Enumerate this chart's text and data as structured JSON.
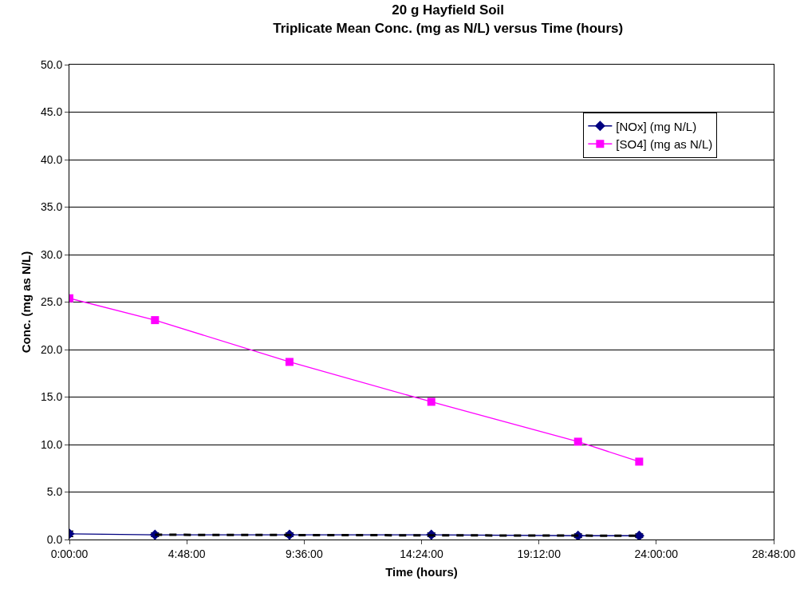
{
  "chart_data": {
    "type": "line",
    "title": "20 g Hayfield Soil\nTriplicate Mean Conc. (mg as N/L) versus Time (hours)",
    "xlabel": "Time (hours)",
    "ylabel": "Conc. (mg as N/L)",
    "xlim": [
      0,
      28.8
    ],
    "xticks": [
      {
        "value": 0,
        "label": "0:00:00"
      },
      {
        "value": 4.8,
        "label": "4:48:00"
      },
      {
        "value": 9.6,
        "label": "9:36:00"
      },
      {
        "value": 14.4,
        "label": "14:24:00"
      },
      {
        "value": 19.2,
        "label": "19:12:00"
      },
      {
        "value": 24,
        "label": "24:00:00"
      },
      {
        "value": 28.8,
        "label": "28:48:00"
      }
    ],
    "ylim": [
      0,
      50
    ],
    "yticks": [
      {
        "value": 0,
        "label": "0.0"
      },
      {
        "value": 5,
        "label": "5.0"
      },
      {
        "value": 10,
        "label": "10.0"
      },
      {
        "value": 15,
        "label": "15.0"
      },
      {
        "value": 20,
        "label": "20.0"
      },
      {
        "value": 25,
        "label": "25.0"
      },
      {
        "value": 30,
        "label": "30.0"
      },
      {
        "value": 35,
        "label": "35.0"
      },
      {
        "value": 40,
        "label": "40.0"
      },
      {
        "value": 45,
        "label": "45.0"
      },
      {
        "value": 50,
        "label": "50.0"
      }
    ],
    "grid": "y",
    "legend": "top right",
    "series": [
      {
        "name": "[NOx] (mg N/L)",
        "color": "#000080",
        "marker": "diamond",
        "x": [
          0,
          3.5,
          9.0,
          14.8,
          20.8,
          23.3
        ],
        "values": [
          0.6,
          0.5,
          0.5,
          0.5,
          0.4,
          0.4
        ],
        "errors": [
          0.3,
          0.2,
          0.2,
          0.2,
          0.2,
          0.2
        ]
      },
      {
        "name": "[SO4] (mg as N/L)",
        "color": "#ff00ff",
        "marker": "square",
        "x": [
          0,
          3.5,
          9.0,
          14.8,
          20.8,
          23.3
        ],
        "values": [
          25.4,
          23.1,
          18.7,
          14.5,
          10.3,
          8.2
        ]
      },
      {
        "color": "#000000",
        "marker": "none",
        "line_style": "dashed",
        "x": [
          3.5,
          23.3
        ],
        "values": [
          0.5,
          0.4
        ]
      }
    ]
  }
}
